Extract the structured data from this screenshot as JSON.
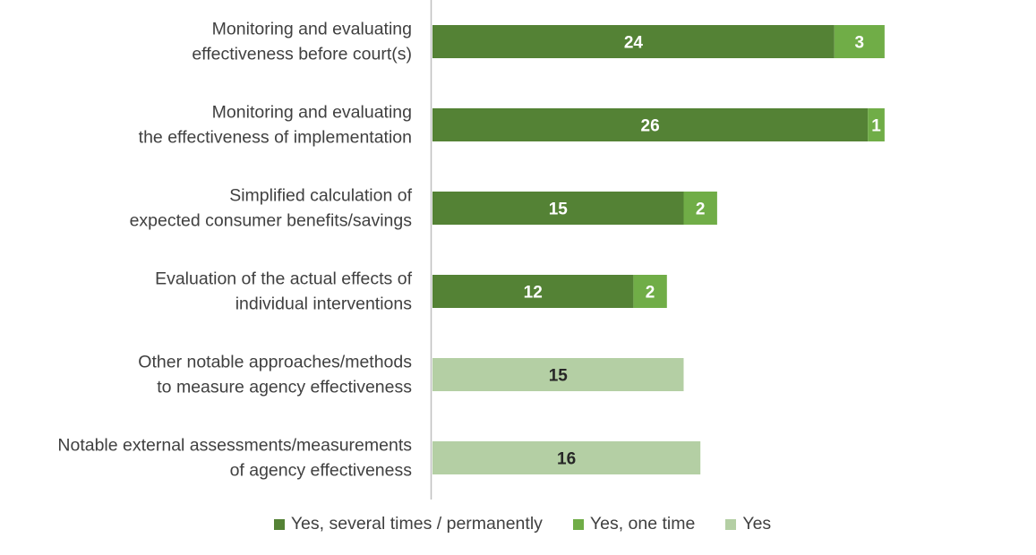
{
  "chart_data": {
    "type": "bar",
    "orientation": "horizontal",
    "stacked": true,
    "title": "",
    "xlabel": "",
    "ylabel": "",
    "xlim": [
      0,
      27
    ],
    "grid": false,
    "legend_position": "bottom",
    "categories": [
      [
        "Monitoring and evaluating",
        "effectiveness before court(s)"
      ],
      [
        "Monitoring and evaluating",
        "the effectiveness of implementation"
      ],
      [
        "Simplified calculation of",
        "expected consumer benefits/savings"
      ],
      [
        "Evaluation of the actual effects of",
        "individual interventions"
      ],
      [
        "Other notable approaches/methods",
        "to measure agency effectiveness"
      ],
      [
        "Notable external assessments/measurements",
        "of agency effectiveness"
      ]
    ],
    "series": [
      {
        "name": "Yes, several times / permanently",
        "color": "#548235",
        "label_color": "#ffffff",
        "values": [
          24,
          26,
          15,
          12,
          null,
          null
        ]
      },
      {
        "name": "Yes, one time",
        "color": "#70AD47",
        "label_color": "#ffffff",
        "values": [
          3,
          1,
          2,
          2,
          null,
          null
        ]
      },
      {
        "name": "Yes",
        "color": "#B4CFA4",
        "label_color": "#262626",
        "values": [
          null,
          null,
          null,
          null,
          15,
          16
        ]
      }
    ]
  }
}
